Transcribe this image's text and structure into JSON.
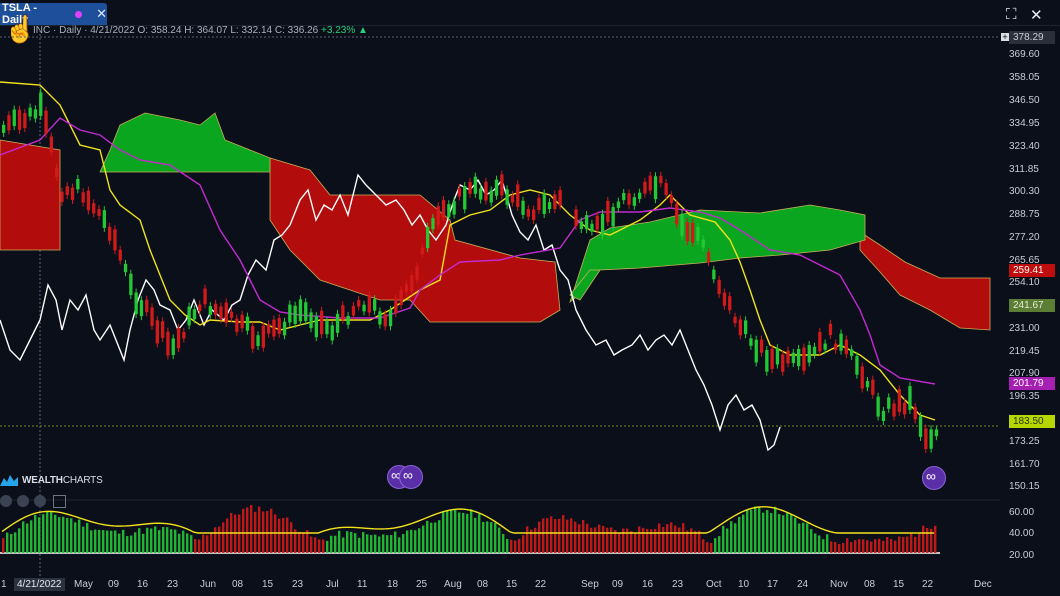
{
  "tab": {
    "label": "TSLA - Daily",
    "close_glyph": "✕"
  },
  "window": {
    "fullscreen_glyph": "⛶",
    "close_glyph": "✕"
  },
  "info_bar": {
    "symbol_text": "INC · Daily · 4/21/2022",
    "open": "O: 358.24",
    "high": "H: 364.07",
    "low": "L: 332.14",
    "close": "C: 336.26",
    "change": "+3.23%",
    "change_icon": "triangle-up-icon"
  },
  "watermark": {
    "bold": "WEALTH",
    "light": "CHARTS"
  },
  "price_axis": [
    "369.60",
    "358.05",
    "346.50",
    "334.95",
    "323.40",
    "311.85",
    "300.30",
    "288.75",
    "277.20",
    "265.65",
    "254.10",
    "231.00",
    "219.45",
    "207.90",
    "196.35",
    "173.25",
    "161.70",
    "150.15"
  ],
  "price_tags": {
    "top": {
      "text": "378.29",
      "bg": "#2a2f3a",
      "fg": "#c8ccd4"
    },
    "kijun": {
      "text": "259.41",
      "bg": "#c00d0d",
      "fg": "#ffffff"
    },
    "cloud": {
      "text": "241.67",
      "bg": "#5c7d34",
      "fg": "#e5ecd8"
    },
    "chikou": {
      "text": "201.79",
      "bg": "#a51fb2",
      "fg": "#ffffff"
    },
    "last": {
      "text": "183.50",
      "bg": "#b6d800",
      "fg": "#29330a"
    }
  },
  "osc_axis": [
    "60.00",
    "40.00",
    "20.00"
  ],
  "date_axis": {
    "selected": "4/21/2022",
    "labels": [
      "1",
      "May",
      "09",
      "16",
      "23",
      "Jun",
      "08",
      "15",
      "23",
      "Jul",
      "11",
      "18",
      "25",
      "Aug",
      "08",
      "15",
      "22",
      "Sep",
      "09",
      "16",
      "23",
      "Oct",
      "10",
      "17",
      "24",
      "Nov",
      "08",
      "15",
      "22",
      "Dec"
    ]
  },
  "colors": {
    "bull": "#22c935",
    "bear": "#d21a1a",
    "cloud_bull": "#0aa61f",
    "cloud_bear": "#b30c0c",
    "tenkan": "#f2e21b",
    "kijun": "#c22ad0",
    "chikou": "#ffffff"
  },
  "chart_data": {
    "type": "candlestick",
    "indicators": [
      "ichimoku cloud",
      "oscillator"
    ],
    "osc_ylim": [
      0,
      70
    ],
    "price_ylim": [
      150.15,
      378.29
    ]
  }
}
